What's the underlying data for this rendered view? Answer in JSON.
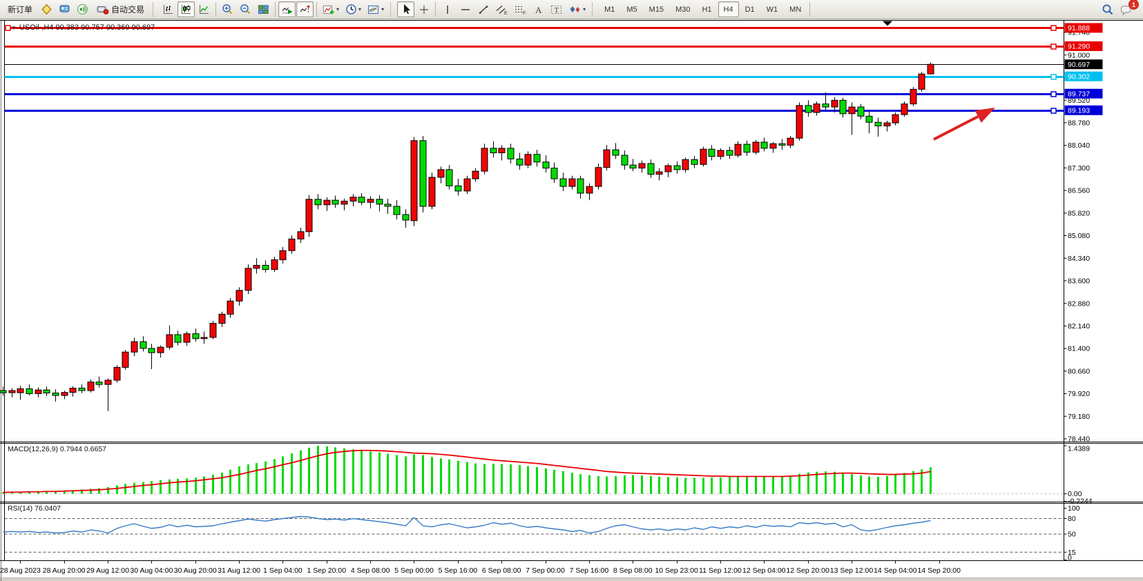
{
  "toolbar": {
    "new_order_label": "新订单",
    "auto_trading_label": "自动交易",
    "timeframes": [
      "M1",
      "M5",
      "M15",
      "M30",
      "H1",
      "H4",
      "D1",
      "W1",
      "MN"
    ],
    "active_timeframe": "H4",
    "chat_badge": "1",
    "glyphs": {
      "text_tool": "A",
      "label_tool": "T",
      "channel": "E",
      "fibonacci": "F",
      "dropdown": "▾",
      "symbol_tri": "▼"
    }
  },
  "chart_data": [
    {
      "type": "candlestick",
      "symbol": "USOil-",
      "timeframe": "H4",
      "title": "USOil-,H4  90.383 90.757 90.369 90.697",
      "last_ohlc": {
        "open": 90.383,
        "high": 90.757,
        "low": 90.369,
        "close": 90.697
      },
      "up_color": "#F00505",
      "down_color": "#00DB00",
      "outline_color": "#000000",
      "background": "#FFFFFF",
      "y_ticks": [
        "91.740",
        "91.000",
        "90.260",
        "89.520",
        "88.780",
        "88.040",
        "87.300",
        "86.560",
        "85.820",
        "85.080",
        "84.340",
        "83.600",
        "82.880",
        "82.140",
        "81.400",
        "80.660",
        "79.920",
        "79.180",
        "78.440"
      ],
      "x_labels": [
        "28 Aug 2023",
        "28 Aug 20:00",
        "29 Aug 12:00",
        "30 Aug 04:00",
        "30 Aug 20:00",
        "31 Aug 12:00",
        "1 Sep 04:00",
        "1 Sep 20:00",
        "4 Sep 08:00",
        "5 Sep 00:00",
        "5 Sep 16:00",
        "6 Sep 08:00",
        "7 Sep 00:00",
        "7 Sep 16:00",
        "8 Sep 08:00",
        "10 Sep 23:00",
        "11 Sep 12:00",
        "12 Sep 04:00",
        "12 Sep 20:00",
        "13 Sep 12:00",
        "14 Sep 04:00",
        "14 Sep 20:00"
      ],
      "bars_per_label": 5,
      "first_label_bar_index": 2,
      "levels": [
        {
          "price": 91.888,
          "label": "91.888",
          "color": "#E80000",
          "width": 3,
          "anchors": [
            "left",
            "right"
          ]
        },
        {
          "price": 91.29,
          "label": "91.290",
          "color": "#E80000",
          "width": 3,
          "anchors": [
            "right"
          ]
        },
        {
          "price": 90.697,
          "label": "90.697",
          "color": "#000000",
          "width": 1,
          "anchors": []
        },
        {
          "price": 90.302,
          "label": "90.302",
          "color": "#00C0F0",
          "width": 3,
          "anchors": [
            "right"
          ]
        },
        {
          "price": 89.737,
          "label": "89.737",
          "color": "#0000D8",
          "width": 3,
          "anchors": [
            "right"
          ]
        },
        {
          "price": 89.193,
          "label": "89.193",
          "color": "#0000D8",
          "width": 3,
          "anchors": [
            "right"
          ]
        }
      ],
      "candles": [
        [
          80.02,
          80.15,
          79.85,
          79.95
        ],
        [
          79.95,
          80.1,
          79.8,
          80.02
        ],
        [
          79.95,
          80.18,
          79.72,
          80.08
        ],
        [
          80.08,
          80.22,
          79.86,
          79.92
        ],
        [
          79.92,
          80.12,
          79.8,
          80.04
        ],
        [
          80.04,
          80.15,
          79.84,
          79.94
        ],
        [
          79.94,
          80.06,
          79.66,
          79.86
        ],
        [
          79.86,
          80.02,
          79.74,
          79.96
        ],
        [
          79.96,
          80.16,
          79.82,
          80.1
        ],
        [
          80.1,
          80.22,
          79.94,
          80.02
        ],
        [
          80.02,
          80.38,
          79.96,
          80.3
        ],
        [
          80.3,
          80.48,
          80.12,
          80.22
        ],
        [
          80.22,
          80.42,
          79.35,
          80.36
        ],
        [
          80.36,
          80.85,
          80.28,
          80.78
        ],
        [
          80.78,
          81.35,
          80.7,
          81.28
        ],
        [
          81.28,
          81.75,
          81.15,
          81.62
        ],
        [
          81.62,
          81.8,
          81.3,
          81.4
        ],
        [
          81.4,
          81.55,
          80.72,
          81.26
        ],
        [
          81.26,
          81.5,
          81.1,
          81.44
        ],
        [
          81.44,
          82.15,
          81.36,
          81.85
        ],
        [
          81.85,
          81.98,
          81.5,
          81.6
        ],
        [
          81.6,
          81.95,
          81.48,
          81.88
        ],
        [
          81.88,
          82.05,
          81.62,
          81.72
        ],
        [
          81.72,
          81.95,
          81.55,
          81.76
        ],
        [
          81.76,
          82.3,
          81.7,
          82.22
        ],
        [
          82.22,
          82.6,
          82.1,
          82.52
        ],
        [
          82.52,
          83.05,
          82.4,
          82.95
        ],
        [
          82.95,
          83.4,
          82.8,
          83.3
        ],
        [
          83.3,
          84.15,
          83.18,
          84.02
        ],
        [
          84.02,
          84.35,
          83.85,
          84.12
        ],
        [
          84.12,
          84.28,
          83.88,
          83.98
        ],
        [
          83.98,
          84.4,
          83.9,
          84.3
        ],
        [
          84.3,
          84.72,
          84.18,
          84.6
        ],
        [
          84.6,
          85.1,
          84.5,
          84.98
        ],
        [
          84.98,
          85.35,
          84.85,
          85.22
        ],
        [
          85.22,
          86.42,
          85.05,
          86.28
        ],
        [
          86.28,
          86.45,
          85.95,
          86.1
        ],
        [
          86.1,
          86.35,
          85.9,
          86.25
        ],
        [
          86.25,
          86.4,
          86.0,
          86.12
        ],
        [
          86.12,
          86.3,
          85.92,
          86.22
        ],
        [
          86.22,
          86.45,
          86.05,
          86.35
        ],
        [
          86.35,
          86.48,
          86.08,
          86.18
        ],
        [
          86.18,
          86.38,
          85.98,
          86.28
        ],
        [
          86.28,
          86.42,
          85.88,
          86.12
        ],
        [
          86.12,
          86.3,
          85.8,
          86.05
        ],
        [
          86.05,
          86.25,
          85.62,
          85.78
        ],
        [
          85.78,
          85.95,
          85.35,
          85.6
        ],
        [
          85.58,
          88.32,
          85.4,
          88.2
        ],
        [
          88.2,
          88.35,
          85.85,
          86.05
        ],
        [
          86.05,
          87.15,
          85.95,
          87.0
        ],
        [
          87.0,
          87.35,
          86.8,
          87.25
        ],
        [
          87.25,
          87.4,
          86.6,
          86.72
        ],
        [
          86.72,
          86.95,
          86.4,
          86.55
        ],
        [
          86.55,
          87.05,
          86.45,
          86.95
        ],
        [
          86.95,
          87.3,
          86.85,
          87.2
        ],
        [
          87.2,
          88.1,
          87.1,
          87.95
        ],
        [
          87.95,
          88.18,
          87.65,
          87.8
        ],
        [
          87.8,
          88.05,
          87.55,
          87.95
        ],
        [
          87.95,
          88.1,
          87.45,
          87.6
        ],
        [
          87.6,
          87.8,
          87.25,
          87.4
        ],
        [
          87.4,
          87.85,
          87.3,
          87.75
        ],
        [
          87.75,
          87.9,
          87.35,
          87.5
        ],
        [
          87.5,
          87.72,
          87.15,
          87.3
        ],
        [
          87.3,
          87.48,
          86.82,
          86.95
        ],
        [
          86.95,
          87.15,
          86.55,
          86.7
        ],
        [
          86.7,
          87.05,
          86.6,
          86.95
        ],
        [
          86.95,
          87.05,
          86.3,
          86.48
        ],
        [
          86.48,
          86.8,
          86.25,
          86.7
        ],
        [
          86.7,
          87.45,
          86.6,
          87.32
        ],
        [
          87.32,
          88.05,
          87.22,
          87.9
        ],
        [
          87.9,
          88.12,
          87.6,
          87.72
        ],
        [
          87.72,
          87.88,
          87.25,
          87.4
        ],
        [
          87.4,
          87.6,
          87.2,
          87.3
        ],
        [
          87.3,
          87.55,
          87.15,
          87.45
        ],
        [
          87.45,
          87.58,
          86.98,
          87.1
        ],
        [
          87.1,
          87.3,
          86.9,
          87.18
        ],
        [
          87.18,
          87.45,
          87.0,
          87.38
        ],
        [
          87.38,
          87.52,
          87.12,
          87.25
        ],
        [
          87.25,
          87.65,
          87.15,
          87.58
        ],
        [
          87.58,
          87.7,
          87.3,
          87.42
        ],
        [
          87.42,
          88.0,
          87.35,
          87.92
        ],
        [
          87.92,
          88.05,
          87.55,
          87.68
        ],
        [
          87.68,
          87.95,
          87.58,
          87.88
        ],
        [
          87.88,
          88.0,
          87.6,
          87.72
        ],
        [
          87.72,
          88.18,
          87.65,
          88.08
        ],
        [
          88.08,
          88.2,
          87.7,
          87.82
        ],
        [
          87.82,
          88.22,
          87.75,
          88.15
        ],
        [
          88.15,
          88.3,
          87.85,
          87.95
        ],
        [
          87.95,
          88.15,
          87.8,
          88.1
        ],
        [
          88.1,
          88.25,
          87.9,
          88.05
        ],
        [
          88.05,
          88.35,
          87.95,
          88.28
        ],
        [
          88.28,
          89.45,
          88.2,
          89.35
        ],
        [
          89.35,
          89.52,
          88.98,
          89.12
        ],
        [
          89.12,
          89.48,
          89.02,
          89.4
        ],
        [
          89.4,
          89.78,
          89.2,
          89.3
        ],
        [
          89.3,
          89.62,
          89.12,
          89.52
        ],
        [
          89.52,
          89.6,
          88.95,
          89.08
        ],
        [
          89.08,
          89.45,
          88.39,
          89.3
        ],
        [
          89.3,
          89.4,
          88.9,
          89.0
        ],
        [
          89.0,
          89.15,
          88.44,
          88.8
        ],
        [
          88.8,
          88.95,
          88.33,
          88.68
        ],
        [
          88.68,
          88.85,
          88.5,
          88.78
        ],
        [
          88.78,
          89.12,
          88.7,
          89.05
        ],
        [
          89.05,
          89.48,
          88.98,
          89.4
        ],
        [
          89.4,
          89.95,
          89.32,
          89.88
        ],
        [
          89.88,
          90.45,
          89.8,
          90.38
        ],
        [
          90.383,
          90.757,
          90.369,
          90.697
        ]
      ]
    },
    {
      "type": "histogram+line",
      "name": "MACD",
      "label": "MACD(12,26,9) 0.7944 0.6657",
      "params": "12,26,9",
      "value": 0.7944,
      "signal_value": 0.6657,
      "ylim": [
        -0.2244,
        1.4389
      ],
      "y_ticks": [
        1.4389,
        0.0,
        -0.2244
      ],
      "y_tick_labels": [
        "1.4389",
        "0.00",
        "-0.2244"
      ],
      "bar_color": "#00DB00",
      "line_color": "#E80000",
      "values": [
        0.05,
        0.06,
        0.06,
        0.07,
        0.08,
        0.08,
        0.09,
        0.1,
        0.11,
        0.13,
        0.15,
        0.17,
        0.2,
        0.25,
        0.3,
        0.33,
        0.35,
        0.38,
        0.41,
        0.43,
        0.45,
        0.46,
        0.48,
        0.52,
        0.57,
        0.63,
        0.72,
        0.82,
        0.88,
        0.92,
        0.97,
        1.04,
        1.12,
        1.21,
        1.3,
        1.38,
        1.4389,
        1.42,
        1.39,
        1.36,
        1.33,
        1.3,
        1.27,
        1.24,
        1.2,
        1.16,
        1.12,
        1.18,
        1.16,
        1.1,
        1.06,
        1.03,
        0.99,
        0.95,
        0.91,
        0.89,
        0.9,
        0.89,
        0.88,
        0.86,
        0.83,
        0.8,
        0.76,
        0.72,
        0.68,
        0.63,
        0.59,
        0.56,
        0.53,
        0.52,
        0.53,
        0.55,
        0.56,
        0.55,
        0.53,
        0.51,
        0.5,
        0.49,
        0.48,
        0.48,
        0.48,
        0.49,
        0.49,
        0.5,
        0.51,
        0.51,
        0.52,
        0.52,
        0.53,
        0.53,
        0.54,
        0.6,
        0.64,
        0.66,
        0.67,
        0.66,
        0.63,
        0.59,
        0.55,
        0.52,
        0.51,
        0.53,
        0.57,
        0.62,
        0.68,
        0.73,
        0.7944
      ],
      "signal": [
        0.04,
        0.05,
        0.05,
        0.06,
        0.06,
        0.07,
        0.07,
        0.08,
        0.09,
        0.1,
        0.11,
        0.12,
        0.14,
        0.16,
        0.19,
        0.22,
        0.25,
        0.27,
        0.3,
        0.33,
        0.35,
        0.37,
        0.39,
        0.42,
        0.45,
        0.48,
        0.53,
        0.58,
        0.64,
        0.7,
        0.75,
        0.81,
        0.87,
        0.93,
        1.0,
        1.07,
        1.14,
        1.2,
        1.24,
        1.27,
        1.29,
        1.3,
        1.3,
        1.29,
        1.28,
        1.26,
        1.24,
        1.22,
        1.21,
        1.2,
        1.18,
        1.16,
        1.13,
        1.1,
        1.07,
        1.04,
        1.01,
        0.99,
        0.97,
        0.95,
        0.93,
        0.91,
        0.88,
        0.85,
        0.82,
        0.79,
        0.76,
        0.73,
        0.7,
        0.67,
        0.65,
        0.63,
        0.62,
        0.61,
        0.6,
        0.59,
        0.58,
        0.57,
        0.56,
        0.55,
        0.54,
        0.53,
        0.53,
        0.52,
        0.52,
        0.52,
        0.52,
        0.52,
        0.52,
        0.52,
        0.53,
        0.54,
        0.56,
        0.58,
        0.6,
        0.61,
        0.62,
        0.62,
        0.61,
        0.6,
        0.59,
        0.58,
        0.58,
        0.59,
        0.6,
        0.62,
        0.6657
      ]
    },
    {
      "type": "line",
      "name": "RSI",
      "label": "RSI(14) 76.0407",
      "period": 14,
      "value": 76.0407,
      "ylim": [
        0,
        100
      ],
      "levels": [
        80,
        50,
        15
      ],
      "y_ticks": [
        100,
        80,
        50,
        15,
        0
      ],
      "y_tick_labels": [
        "100",
        "80",
        "50",
        "15",
        "0"
      ],
      "line_color": "#3C7CC8",
      "values": [
        54,
        55,
        54,
        55,
        53,
        54,
        52,
        53,
        56,
        54,
        58,
        56,
        52,
        61,
        66,
        70,
        65,
        61,
        63,
        68,
        64,
        67,
        64,
        65,
        66,
        70,
        73,
        76,
        79,
        77,
        75,
        78,
        80,
        82,
        84,
        83,
        80,
        78,
        79,
        77,
        80,
        78,
        76,
        74,
        72,
        69,
        66,
        82,
        66,
        64,
        68,
        70,
        66,
        62,
        64,
        67,
        72,
        69,
        71,
        66,
        63,
        65,
        62,
        60,
        58,
        55,
        57,
        52,
        55,
        61,
        66,
        68,
        64,
        60,
        58,
        60,
        57,
        60,
        58,
        62,
        59,
        64,
        61,
        64,
        62,
        66,
        63,
        67,
        65,
        66,
        64,
        72,
        70,
        72,
        69,
        71,
        64,
        68,
        58,
        56,
        59,
        63,
        66,
        68,
        71,
        73,
        76.0407
      ]
    }
  ],
  "annotation": {
    "type": "arrow",
    "color": "#DD2222"
  }
}
